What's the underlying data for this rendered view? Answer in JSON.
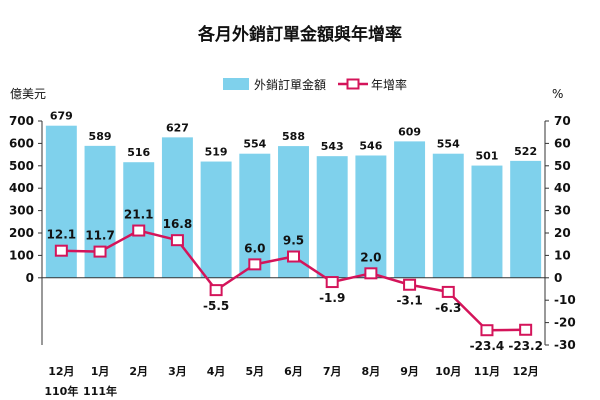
{
  "chart_data": {
    "type": "bar",
    "title": "各月外銷訂單金額與年增率",
    "left_axis_title": "億美元",
    "right_axis_title": "%",
    "categories": [
      "12月",
      "1月",
      "2月",
      "3月",
      "4月",
      "5月",
      "6月",
      "7月",
      "8月",
      "9月",
      "10月",
      "11月",
      "12月"
    ],
    "year_labels": [
      {
        "index": 0,
        "label": "110年"
      },
      {
        "index": 1,
        "label": "111年"
      }
    ],
    "series": [
      {
        "name": "外銷訂單金額",
        "type": "bar",
        "axis": "left",
        "color": "#7fd1ec",
        "values": [
          679,
          589,
          516,
          627,
          519,
          554,
          588,
          543,
          546,
          609,
          554,
          501,
          522
        ],
        "labels": [
          "679",
          "589",
          "516",
          "627",
          "519",
          "554",
          "588",
          "543",
          "546",
          "609",
          "554",
          "501",
          "522"
        ]
      },
      {
        "name": "年增率",
        "type": "line",
        "axis": "right",
        "color": "#d4145a",
        "values": [
          12.1,
          11.7,
          21.1,
          16.8,
          -5.5,
          6.0,
          9.5,
          -1.9,
          2.0,
          -3.1,
          -6.3,
          -23.4,
          -23.2
        ],
        "labels": [
          "12.1",
          "11.7",
          "21.1",
          "16.8",
          "-5.5",
          "6.0",
          "9.5",
          "-1.9",
          "2.0",
          "-3.1",
          "-6.3",
          "-23.4",
          "-23.2"
        ]
      }
    ],
    "left_axis": {
      "ticks": [
        "0",
        "100",
        "200",
        "300",
        "400",
        "500",
        "600",
        "700"
      ],
      "tick_values": [
        0,
        100,
        200,
        300,
        400,
        500,
        600,
        700
      ]
    },
    "right_axis": {
      "ylim": [
        -30,
        70
      ],
      "ticks": [
        "-30",
        "-20",
        "-10",
        "0",
        "10",
        "20",
        "30",
        "40",
        "50",
        "60",
        "70"
      ],
      "tick_values": [
        -30,
        -20,
        -10,
        0,
        10,
        20,
        30,
        40,
        50,
        60,
        70
      ]
    },
    "grid": false,
    "legend_position": "top"
  }
}
